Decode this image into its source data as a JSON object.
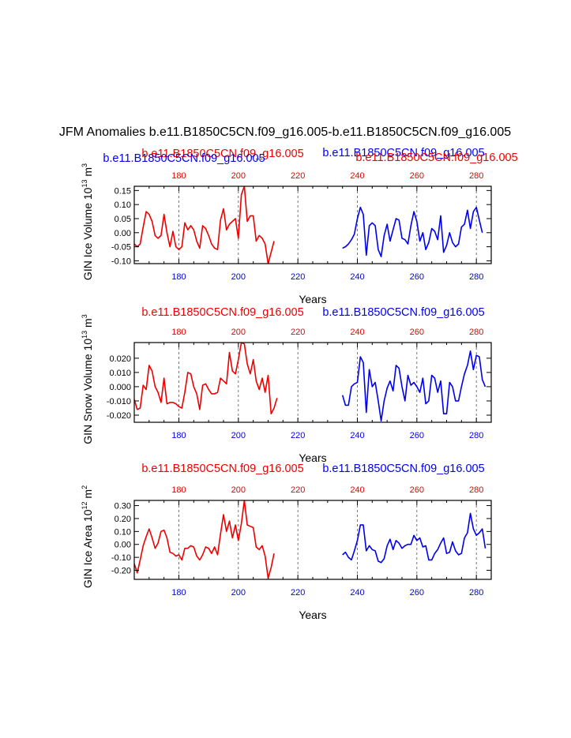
{
  "figure_title": "JFM Anomalies b.e11.B1850C5CN.f09_g16.005-b.e11.B1850C5CN.f09_g16.005",
  "colors": {
    "series_red": "#ee0000",
    "series_blue": "#0000ee",
    "axes": "#000000",
    "grid": "#555555"
  },
  "chart_data": [
    {
      "type": "line",
      "panel": "ice-volume",
      "ylabel": {
        "text": "GIN Ice Volume 10",
        "exp": "13",
        "unit": " m",
        "unit_exp": "3"
      },
      "xlabel": "Years",
      "xlim": [
        165,
        285
      ],
      "ylim": [
        -0.11,
        0.165
      ],
      "yticks": [
        -0.1,
        -0.05,
        0.0,
        0.05,
        0.1,
        0.15
      ],
      "ytick_labels": [
        "-0.10",
        "-0.05",
        "0.00",
        "0.05",
        "0.10",
        "0.15"
      ],
      "xticks": [
        180,
        200,
        220,
        240,
        260,
        280
      ],
      "xtick_labels": [
        "180",
        "200",
        "220",
        "240",
        "260",
        "280"
      ],
      "grid_x": [
        180,
        200,
        220,
        240,
        260,
        280
      ],
      "top_labels": [
        "b.e11.B1850C5CN.f09_g16.005",
        "b.e11.B1850C5CN.f09_g16.005",
        "b.e11.B1850C5CN.f09_g16.005",
        "b.e11.B1850C5CN.f09_g16.005"
      ],
      "series": [
        {
          "name": "b.e11.B1850C5CN.f09_g16.005",
          "color": "red",
          "x_start": 165,
          "values": [
            -0.04,
            -0.05,
            -0.04,
            0.02,
            0.075,
            0.065,
            0.04,
            -0.01,
            -0.02,
            -0.01,
            0.065,
            0.0,
            -0.05,
            0.005,
            -0.05,
            -0.06,
            -0.05,
            0.035,
            0.01,
            0.025,
            0.01,
            -0.03,
            -0.055,
            0.025,
            0.015,
            -0.01,
            -0.04,
            -0.055,
            -0.06,
            0.045,
            0.085,
            0.01,
            0.03,
            0.04,
            0.05,
            -0.02,
            0.135,
            0.165,
            0.04,
            0.06,
            0.06,
            -0.03,
            -0.01,
            -0.02,
            -0.04,
            -0.11,
            -0.07,
            -0.03
          ]
        },
        {
          "name": "b.e11.B1850C5CN.f09_g16.005",
          "color": "blue",
          "x_start": 235,
          "values": [
            -0.055,
            -0.05,
            -0.04,
            -0.025,
            -0.005,
            0.05,
            0.09,
            0.065,
            -0.08,
            0.025,
            0.035,
            0.025,
            -0.06,
            -0.085,
            -0.01,
            0.03,
            -0.03,
            0.01,
            0.05,
            0.045,
            -0.02,
            -0.025,
            -0.04,
            0.025,
            0.075,
            0.04,
            -0.03,
            0.0,
            -0.06,
            -0.035,
            0.015,
            0.005,
            -0.025,
            0.06,
            -0.07,
            -0.045,
            0.0,
            -0.035,
            -0.05,
            -0.04,
            0.02,
            0.03,
            0.08,
            0.015,
            0.075,
            0.09,
            0.045,
            0.0
          ]
        }
      ]
    },
    {
      "type": "line",
      "panel": "snow-volume",
      "ylabel": {
        "text": "GIN Snow Volume 10",
        "exp": "13",
        "unit": " m",
        "unit_exp": "3"
      },
      "xlabel": "Years",
      "xlim": [
        165,
        285
      ],
      "ylim": [
        -0.025,
        0.031
      ],
      "yticks": [
        -0.02,
        -0.01,
        0.0,
        0.01,
        0.02
      ],
      "ytick_labels": [
        "-0.020",
        "-0.010",
        "0.000",
        "0.010",
        "0.020"
      ],
      "xticks": [
        180,
        200,
        220,
        240,
        260,
        280
      ],
      "xtick_labels": [
        "180",
        "200",
        "220",
        "240",
        "260",
        "280"
      ],
      "grid_x": [
        180,
        200,
        220,
        240,
        260,
        280
      ],
      "top_labels": [
        "b.e11.B1850C5CN.f09_g16.005",
        "b.e11.B1850C5CN.f09_g16.005"
      ],
      "series": [
        {
          "name": "b.e11.B1850C5CN.f09_g16.005",
          "color": "red",
          "x_start": 165,
          "values": [
            -0.009,
            -0.016,
            -0.015,
            0.001,
            -0.002,
            0.015,
            0.011,
            0.0,
            -0.004,
            -0.011,
            0.006,
            -0.012,
            -0.011,
            -0.011,
            -0.012,
            -0.014,
            -0.015,
            -0.004,
            0.01,
            0.009,
            0.0,
            -0.005,
            -0.016,
            0.001,
            0.002,
            -0.002,
            -0.005,
            -0.005,
            -0.004,
            0.006,
            0.004,
            0.002,
            0.024,
            0.011,
            0.009,
            0.019,
            0.031,
            0.03,
            0.016,
            0.009,
            0.019,
            0.004,
            -0.002,
            0.006,
            -0.004,
            0.008,
            -0.019,
            -0.015,
            -0.008
          ]
        },
        {
          "name": "b.e11.B1850C5CN.f09_g16.005",
          "color": "blue",
          "x_start": 235,
          "values": [
            -0.006,
            -0.013,
            -0.013,
            0.0,
            0.002,
            0.003,
            0.021,
            0.017,
            -0.018,
            0.012,
            0.0,
            0.003,
            -0.01,
            -0.024,
            -0.01,
            -0.001,
            0.004,
            -0.003,
            0.015,
            0.013,
            0.0,
            -0.01,
            0.008,
            0.001,
            0.003,
            0.0,
            -0.004,
            0.006,
            -0.012,
            -0.01,
            0.008,
            0.006,
            -0.004,
            0.004,
            -0.019,
            -0.019,
            0.003,
            0.0,
            -0.01,
            -0.01,
            0.0,
            0.009,
            0.015,
            0.025,
            0.012,
            0.022,
            0.021,
            0.005,
            0.0
          ]
        }
      ]
    },
    {
      "type": "line",
      "panel": "ice-area",
      "ylabel": {
        "text": "GIN Ice Area 10",
        "exp": "12",
        "unit": " m",
        "unit_exp": "2"
      },
      "xlabel": "Years",
      "xlim": [
        165,
        285
      ],
      "ylim": [
        -0.27,
        0.34
      ],
      "yticks": [
        -0.2,
        -0.1,
        0.0,
        0.1,
        0.2,
        0.3
      ],
      "ytick_labels": [
        "-0.20",
        "-0.10",
        "0.00",
        "0.10",
        "0.20",
        "0.30"
      ],
      "xticks": [
        180,
        200,
        220,
        240,
        260,
        280
      ],
      "xtick_labels": [
        "180",
        "200",
        "220",
        "240",
        "260",
        "280"
      ],
      "grid_x": [
        180,
        200,
        220,
        240,
        260,
        280
      ],
      "top_labels": [
        "b.e11.B1850C5CN.f09_g16.005",
        "b.e11.B1850C5CN.f09_g16.005"
      ],
      "series": [
        {
          "name": "b.e11.B1850C5CN.f09_g16.005",
          "color": "red",
          "x_start": 165,
          "values": [
            -0.15,
            -0.22,
            -0.12,
            -0.01,
            0.06,
            0.12,
            0.05,
            -0.03,
            0.01,
            0.1,
            0.11,
            0.05,
            -0.06,
            -0.07,
            -0.09,
            -0.08,
            -0.12,
            -0.03,
            -0.03,
            -0.01,
            -0.02,
            -0.09,
            -0.12,
            -0.08,
            -0.02,
            -0.03,
            -0.07,
            -0.02,
            -0.08,
            0.08,
            0.23,
            0.1,
            0.18,
            0.05,
            0.15,
            0.03,
            0.16,
            0.34,
            0.15,
            0.14,
            0.13,
            -0.02,
            -0.04,
            -0.01,
            -0.09,
            -0.26,
            -0.18,
            -0.07
          ]
        },
        {
          "name": "b.e11.B1850C5CN.f09_g16.005",
          "color": "blue",
          "x_start": 235,
          "values": [
            -0.08,
            -0.06,
            -0.1,
            -0.12,
            -0.05,
            0.03,
            0.15,
            0.15,
            -0.05,
            -0.01,
            -0.04,
            -0.05,
            -0.13,
            -0.14,
            -0.11,
            -0.01,
            0.04,
            -0.04,
            0.03,
            0.01,
            -0.03,
            -0.01,
            0.0,
            0.0,
            0.07,
            0.03,
            0.05,
            -0.02,
            -0.01,
            -0.12,
            -0.12,
            -0.07,
            -0.04,
            0.01,
            0.05,
            -0.07,
            -0.06,
            0.02,
            -0.05,
            -0.08,
            -0.07,
            0.05,
            0.09,
            0.24,
            0.12,
            0.07,
            0.09,
            0.12,
            -0.03
          ]
        }
      ]
    }
  ]
}
